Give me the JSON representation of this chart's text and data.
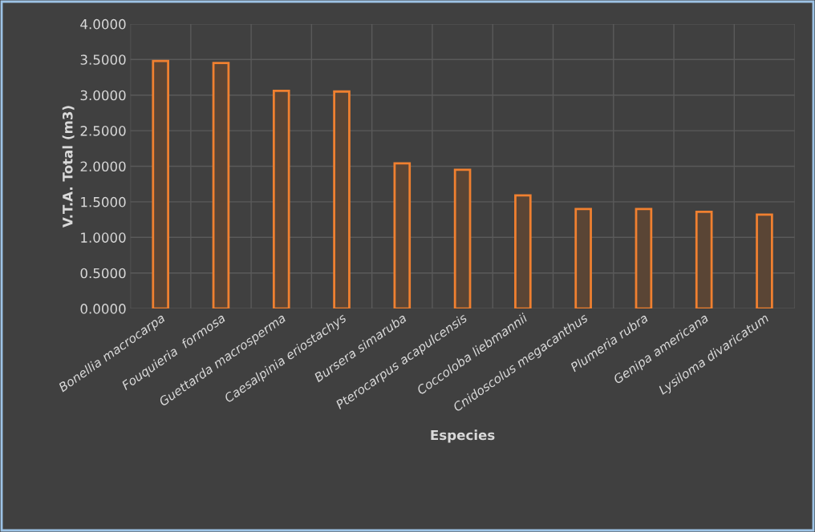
{
  "chart_data": {
    "type": "bar",
    "xlabel": "Especies",
    "ylabel": "V.T.A. Total (m3)",
    "categories": [
      "Bonellia macrocarpa",
      "Fouquieria  formosa",
      "Guettarda macrosperma",
      "Caesalpinia eriostachys",
      "Bursera simaruba",
      "Pterocarpus acapulcensis",
      "Coccoloba liebmannii",
      "Cnidoscolus megacanthus",
      "Plumeria rubra",
      "Genipa americana",
      "Lysiloma divaricatum"
    ],
    "values": [
      3.48,
      3.45,
      3.06,
      3.05,
      2.04,
      1.95,
      1.59,
      1.4,
      1.4,
      1.36,
      1.32
    ],
    "color": "#f08030",
    "ylim": [
      0,
      4
    ],
    "yticks": [
      {
        "value": 0,
        "label": "0.0000"
      },
      {
        "value": 0.5,
        "label": "0.5000"
      },
      {
        "value": 1,
        "label": "1.0000"
      },
      {
        "value": 1.5,
        "label": "1.5000"
      },
      {
        "value": 2,
        "label": "2.0000"
      },
      {
        "value": 2.5,
        "label": "2.5000"
      },
      {
        "value": 3,
        "label": "3.0000"
      },
      {
        "value": 3.5,
        "label": "3.5000"
      },
      {
        "value": 4,
        "label": "4.0000"
      }
    ],
    "grid": true
  }
}
